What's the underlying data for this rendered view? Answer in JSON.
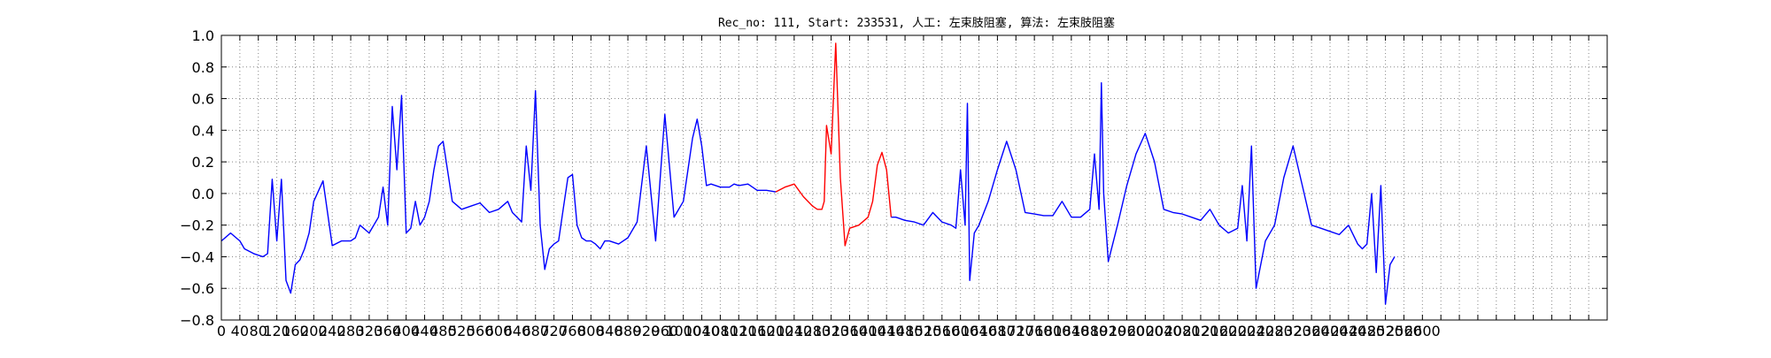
{
  "chart_data": {
    "type": "line",
    "title": "Rec_no: 111, Start: 233531, 人工: 左束肢阻塞, 算法: 左束肢阻塞",
    "xlabel": "",
    "ylabel": "",
    "xlim": [
      0,
      3000
    ],
    "ylim": [
      -0.8,
      1.0
    ],
    "grid": true,
    "yticks": [
      1.0,
      0.8,
      0.6,
      0.4,
      0.2,
      0.0,
      -0.2,
      -0.4,
      -0.6,
      -0.8
    ],
    "ytick_labels": [
      "1.0",
      "0.8",
      "0.6",
      "0.4",
      "0.2",
      "0.0",
      "−0.2",
      "−0.4",
      "−0.6",
      "−0.8"
    ],
    "xtick_step": 40,
    "xticks_labeled_max": 2600,
    "colors": {
      "normal": "#0000ff",
      "highlight": "#ff0000",
      "grid": "#888888"
    },
    "series": [
      {
        "color": "#0000ff",
        "x": [
          0,
          20,
          40,
          50,
          70,
          90,
          100,
          110,
          120,
          130,
          140,
          150,
          160,
          170,
          180,
          190,
          200,
          220,
          240,
          260,
          280,
          290,
          300,
          320,
          340,
          350,
          360,
          370,
          380,
          390,
          400,
          410,
          420,
          430,
          440,
          450,
          460,
          470,
          480,
          500,
          520,
          540,
          560,
          580,
          600,
          620,
          630,
          640,
          650,
          660,
          670,
          680,
          690,
          700,
          710,
          720,
          730,
          740,
          750,
          760,
          770,
          780,
          790,
          800,
          810,
          820,
          830,
          840,
          860,
          880,
          900,
          920,
          940,
          960,
          980,
          1000,
          1010,
          1020,
          1030,
          1040,
          1050,
          1060,
          1080,
          1100,
          1110,
          1120,
          1140,
          1160,
          1180,
          1200
        ],
        "y": [
          -0.3,
          -0.25,
          -0.3,
          -0.35,
          -0.38,
          -0.4,
          -0.38,
          0.09,
          -0.3,
          0.09,
          -0.55,
          -0.63,
          -0.45,
          -0.42,
          -0.35,
          -0.25,
          -0.05,
          0.08,
          -0.33,
          -0.3,
          -0.3,
          -0.28,
          -0.2,
          -0.25,
          -0.15,
          0.04,
          -0.2,
          0.55,
          0.15,
          0.62,
          -0.25,
          -0.22,
          -0.05,
          -0.2,
          -0.15,
          -0.05,
          0.15,
          0.3,
          0.33,
          -0.05,
          -0.1,
          -0.08,
          -0.06,
          -0.12,
          -0.1,
          -0.05,
          -0.12,
          -0.15,
          -0.18,
          0.3,
          0.02,
          0.65,
          -0.2,
          -0.48,
          -0.35,
          -0.32,
          -0.3,
          -0.1,
          0.1,
          0.12,
          -0.2,
          -0.28,
          -0.3,
          -0.3,
          -0.32,
          -0.35,
          -0.3,
          -0.3,
          -0.32,
          -0.28,
          -0.18,
          0.3,
          -0.3,
          0.5,
          -0.15,
          -0.05,
          0.15,
          0.35,
          0.47,
          0.3,
          0.05,
          0.06,
          0.04,
          0.04,
          0.06,
          0.05,
          0.06,
          0.02,
          0.02,
          0.01
        ]
      },
      {
        "color": "#ff0000",
        "x": [
          1200,
          1220,
          1240,
          1260,
          1280,
          1290,
          1300,
          1305,
          1310,
          1320,
          1330,
          1340,
          1350,
          1360,
          1380,
          1400,
          1410,
          1420,
          1430,
          1440,
          1450
        ],
        "y": [
          0.01,
          0.04,
          0.06,
          -0.02,
          -0.08,
          -0.1,
          -0.1,
          -0.05,
          0.43,
          0.25,
          0.95,
          0.1,
          -0.33,
          -0.22,
          -0.2,
          -0.15,
          -0.05,
          0.18,
          0.26,
          0.15,
          -0.15
        ]
      },
      {
        "color": "#0000ff",
        "x": [
          1450,
          1460,
          1480,
          1500,
          1520,
          1540,
          1560,
          1580,
          1590,
          1600,
          1610,
          1615,
          1620,
          1630,
          1640,
          1660,
          1680,
          1700,
          1720,
          1740,
          1760,
          1780,
          1800,
          1820,
          1840,
          1860,
          1880,
          1890,
          1900,
          1905,
          1910,
          1920,
          1940,
          1960,
          1980,
          2000,
          2020,
          2040,
          2060,
          2080,
          2100,
          2120,
          2140,
          2160,
          2180,
          2200,
          2210,
          2220,
          2230,
          2240,
          2260,
          2280,
          2300,
          2320,
          2340,
          2360,
          2380,
          2400,
          2420,
          2440,
          2460,
          2470,
          2480,
          2490,
          2500,
          2510,
          2520,
          2530,
          2540
        ],
        "y": [
          -0.15,
          -0.15,
          -0.17,
          -0.18,
          -0.2,
          -0.12,
          -0.18,
          -0.2,
          -0.22,
          0.15,
          -0.2,
          0.57,
          -0.55,
          -0.25,
          -0.2,
          -0.05,
          0.15,
          0.33,
          0.15,
          -0.12,
          -0.13,
          -0.14,
          -0.14,
          -0.05,
          -0.15,
          -0.15,
          -0.1,
          0.25,
          -0.1,
          0.7,
          0.0,
          -0.43,
          -0.2,
          0.05,
          0.25,
          0.38,
          0.2,
          -0.1,
          -0.12,
          -0.13,
          -0.15,
          -0.17,
          -0.1,
          -0.2,
          -0.25,
          -0.22,
          0.05,
          -0.3,
          0.3,
          -0.6,
          -0.3,
          -0.2,
          0.1,
          0.3,
          0.05,
          -0.2,
          -0.22,
          -0.24,
          -0.26,
          -0.2,
          -0.32,
          -0.35,
          -0.32,
          0.0,
          -0.5,
          0.05,
          -0.7,
          -0.45,
          -0.4
        ]
      }
    ]
  }
}
